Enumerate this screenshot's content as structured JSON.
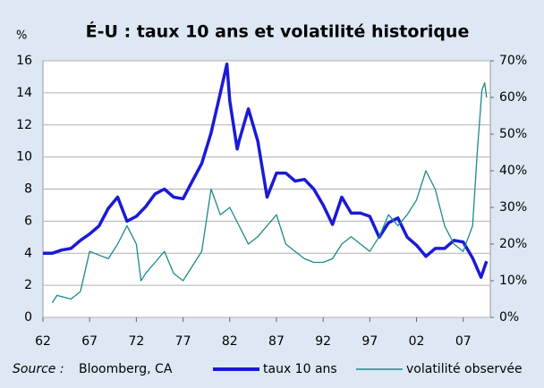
{
  "chart_data": {
    "type": "line",
    "title": "É-U : taux 10 ans et volatilité historique",
    "y_unit": "%",
    "source_label": "Source :",
    "source_text": "Bloomberg, CA",
    "xlim": [
      1962,
      2009.9
    ],
    "xticks": [
      {
        "value": 1962,
        "label": "62"
      },
      {
        "value": 1967,
        "label": "67"
      },
      {
        "value": 1972,
        "label": "72"
      },
      {
        "value": 1977,
        "label": "77"
      },
      {
        "value": 1982,
        "label": "82"
      },
      {
        "value": 1987,
        "label": "87"
      },
      {
        "value": 1992,
        "label": "92"
      },
      {
        "value": 1997,
        "label": "97"
      },
      {
        "value": 2002,
        "label": "02"
      },
      {
        "value": 2007,
        "label": "07"
      }
    ],
    "ylim": [
      0,
      16
    ],
    "yticks": [
      0,
      2,
      4,
      6,
      8,
      10,
      12,
      14,
      16
    ],
    "y2lim": [
      0,
      70
    ],
    "y2ticks": [
      {
        "value": 0,
        "label": "0%"
      },
      {
        "value": 10,
        "label": "10%"
      },
      {
        "value": 20,
        "label": "20%"
      },
      {
        "value": 30,
        "label": "30%"
      },
      {
        "value": 40,
        "label": "40%"
      },
      {
        "value": 50,
        "label": "50%"
      },
      {
        "value": 60,
        "label": "60%"
      },
      {
        "value": 70,
        "label": "70%"
      }
    ],
    "grid": true,
    "series": [
      {
        "name": "taux 10 ans",
        "color": "#1a1ad6",
        "x": [
          1962,
          1963,
          1964,
          1965,
          1966,
          1967,
          1968,
          1969,
          1970,
          1971,
          1972,
          1973,
          1974,
          1975,
          1976,
          1977,
          1978,
          1979,
          1980,
          1981,
          1981.7,
          1982,
          1982.8,
          1983,
          1984,
          1985,
          1986,
          1987,
          1988,
          1989,
          1990,
          1991,
          1992,
          1993,
          1994,
          1995,
          1996,
          1997,
          1998,
          1999,
          2000,
          2001,
          2002,
          2003,
          2004,
          2005,
          2006,
          2007,
          2008,
          2008.9,
          2009.5
        ],
        "values": [
          4.0,
          4.0,
          4.2,
          4.3,
          4.8,
          5.2,
          5.7,
          6.8,
          7.5,
          6.0,
          6.3,
          6.9,
          7.7,
          8.0,
          7.5,
          7.4,
          8.5,
          9.6,
          11.5,
          14.0,
          15.8,
          13.5,
          10.5,
          11.0,
          13.0,
          11.0,
          7.5,
          9.0,
          9.0,
          8.5,
          8.6,
          8.0,
          7.0,
          5.8,
          7.5,
          6.5,
          6.5,
          6.3,
          5.0,
          5.9,
          6.2,
          5.0,
          4.5,
          3.8,
          4.3,
          4.3,
          4.8,
          4.7,
          3.7,
          2.5,
          3.5
        ]
      },
      {
        "name": "volatilité observée",
        "color": "#1a8a8a",
        "axis": "y2",
        "x": [
          1963,
          1963.5,
          1965,
          1966,
          1967,
          1968,
          1969,
          1970,
          1971,
          1972,
          1972.5,
          1973,
          1974,
          1975,
          1976,
          1977,
          1978,
          1979,
          1980,
          1981,
          1982,
          1983,
          1984,
          1985,
          1986,
          1987,
          1988,
          1989,
          1990,
          1991,
          1992,
          1993,
          1994,
          1995,
          1996,
          1997,
          1998,
          1999,
          2000,
          2001,
          2002,
          2003,
          2004,
          2005,
          2006,
          2007,
          2008,
          2008.5,
          2009,
          2009.3,
          2009.5
        ],
        "values": [
          4,
          6,
          5,
          7,
          18,
          17,
          16,
          20,
          25,
          20,
          10,
          12,
          15,
          18,
          12,
          10,
          14,
          18,
          35,
          28,
          30,
          25,
          20,
          22,
          25,
          28,
          20,
          18,
          16,
          15,
          15,
          16,
          20,
          22,
          20,
          18,
          22,
          28,
          25,
          28,
          32,
          40,
          35,
          25,
          20,
          18,
          25,
          45,
          62,
          64,
          60
        ]
      }
    ]
  }
}
